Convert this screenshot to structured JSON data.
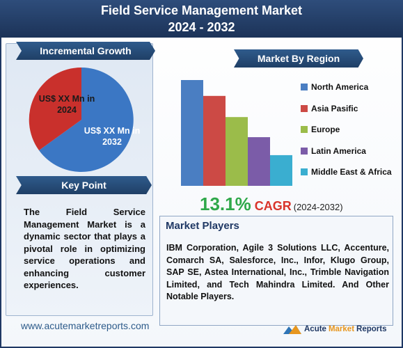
{
  "header": {
    "line1": "Field Service Management Market",
    "line2": "2024 - 2032"
  },
  "incremental_growth": {
    "title": "Incremental Growth",
    "label_2024": [
      "US$ XX Mn in",
      "2024"
    ],
    "label_2032": [
      "US$ XX Mn in",
      "2032"
    ],
    "colors": {
      "slice_2024": "#c9302c",
      "slice_2032": "#3b77c4"
    }
  },
  "key_point": {
    "title": "Key Point",
    "text": "The Field Service Management Market is a dynamic sector that plays a pivotal role in optimizing service operations and enhancing customer experiences."
  },
  "market_by_region": {
    "title": "Market By Region",
    "legend": [
      {
        "label": "North America",
        "color": "#4a7ec2"
      },
      {
        "label": "Asia Pasific",
        "color": "#cc4a45"
      },
      {
        "label": "Europe",
        "color": "#9bbc4a"
      },
      {
        "label": "Latin America",
        "color": "#7b5ca8"
      },
      {
        "label": "Middle East & Africa",
        "color": "#3aaed0"
      }
    ]
  },
  "chart_data": {
    "type": "bar",
    "categories": [
      "North America",
      "Asia Pasific",
      "Europe",
      "Latin America",
      "Middle East & Africa"
    ],
    "values": [
      100,
      85,
      65,
      46,
      29
    ],
    "title": "Market By Region",
    "xlabel": "",
    "ylabel": "",
    "ylim": [
      0,
      100
    ],
    "grid": false,
    "legend": "right"
  },
  "cagr": {
    "value": "13.1%",
    "label": "CAGR",
    "range": "(2024-2032)"
  },
  "market_players": {
    "title": "Market Players",
    "text": "IBM Corporation, Agile 3 Solutions LLC, Accenture, Comarch SA, Salesforce, Inc., Infor, Klugo Group, SAP SE, Astea International, Inc., Trimble Navigation Limited, and Tech Mahindra Limited. And Other Notable Players."
  },
  "footer": {
    "url": "www.acutemarketreports.com",
    "brand": [
      "Acute",
      "Market",
      "Reports"
    ]
  }
}
